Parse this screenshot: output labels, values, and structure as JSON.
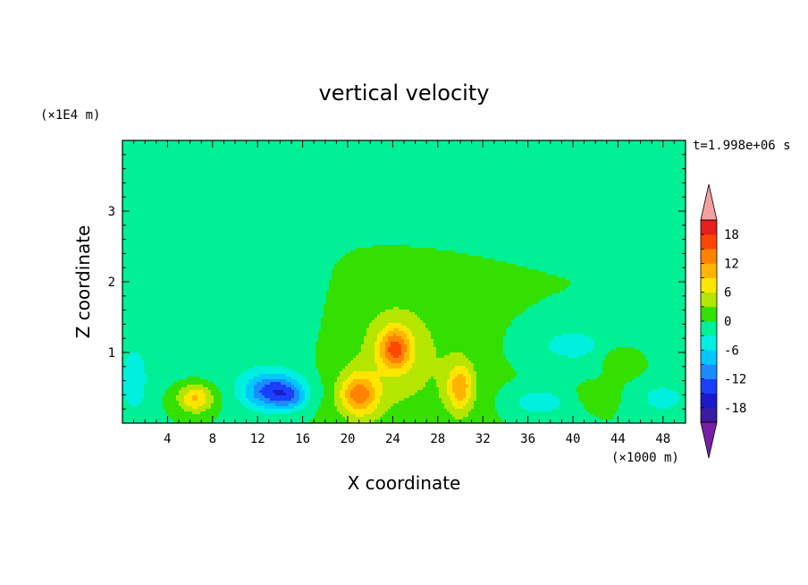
{
  "chart_data": {
    "type": "heatmap",
    "title": "vertical velocity",
    "xlabel": "X coordinate",
    "ylabel": "Z coordinate",
    "x_unit_label": "(×1000 m)",
    "y_unit_label": "(×1E4 m)",
    "time_label": "t=1.998e+06 s",
    "xlim": [
      0,
      50
    ],
    "ylim": [
      0,
      4
    ],
    "x_ticks": [
      4,
      8,
      12,
      16,
      20,
      24,
      28,
      32,
      36,
      40,
      44,
      48
    ],
    "y_ticks": [
      1,
      2,
      3
    ],
    "colorbar": {
      "levels": [
        -21,
        -18,
        -15,
        -12,
        -9,
        -6,
        -3,
        0,
        3,
        6,
        9,
        12,
        15,
        18,
        21
      ],
      "tick_labels": [
        18,
        12,
        6,
        0,
        -6,
        -12,
        -18
      ],
      "colors": [
        "#7a1ea8",
        "#3a1aa0",
        "#1a1ac8",
        "#1a40ff",
        "#1a8cff",
        "#00c8ff",
        "#00f0e0",
        "#00f096",
        "#33e000",
        "#b4e600",
        "#ffe600",
        "#ffb400",
        "#ff8200",
        "#ff4600",
        "#e61e1e",
        "#f5a0a0"
      ],
      "over_color": "#f5a0a0",
      "under_color": "#7a1ea8"
    },
    "background_level": 0,
    "features": [
      {
        "x": 6.5,
        "z": 0.35,
        "sx": 1.6,
        "sz": 0.2,
        "value": 10
      },
      {
        "x": 13.5,
        "z": 0.45,
        "sx": 2.6,
        "sz": 0.25,
        "value": -14
      },
      {
        "x": 15,
        "z": 0.35,
        "sx": 1.2,
        "sz": 0.15,
        "value": -4
      },
      {
        "x": 21,
        "z": 0.4,
        "sx": 1.7,
        "sz": 0.3,
        "value": 12
      },
      {
        "x": 24.2,
        "z": 1.05,
        "sx": 1.4,
        "sz": 0.3,
        "value": 13
      },
      {
        "x": 30,
        "z": 0.5,
        "sx": 1.2,
        "sz": 0.35,
        "value": 10
      },
      {
        "x": 24.5,
        "z": 0.95,
        "sx": 6,
        "sz": 1.1,
        "value": 4
      },
      {
        "x": 26,
        "z": 2.9,
        "sx": 8,
        "sz": 0.5,
        "value": -1
      },
      {
        "x": 10,
        "z": 1.5,
        "sx": 7,
        "sz": 1,
        "value": -3
      },
      {
        "x": 1,
        "z": 0.6,
        "sx": 1.3,
        "sz": 0.5,
        "value": -5
      },
      {
        "x": 40,
        "z": 1.1,
        "sx": 4,
        "sz": 0.3,
        "value": -4
      },
      {
        "x": 37,
        "z": 0.3,
        "sx": 2.5,
        "sz": 0.2,
        "value": -5
      },
      {
        "x": 48,
        "z": 0.35,
        "sx": 2,
        "sz": 0.2,
        "value": -5
      },
      {
        "x": 42,
        "z": 0.4,
        "sx": 1.5,
        "sz": 0.15,
        "value": 2
      },
      {
        "x": 44,
        "z": 0.9,
        "sx": 1.5,
        "sz": 0.2,
        "value": 3
      }
    ]
  }
}
